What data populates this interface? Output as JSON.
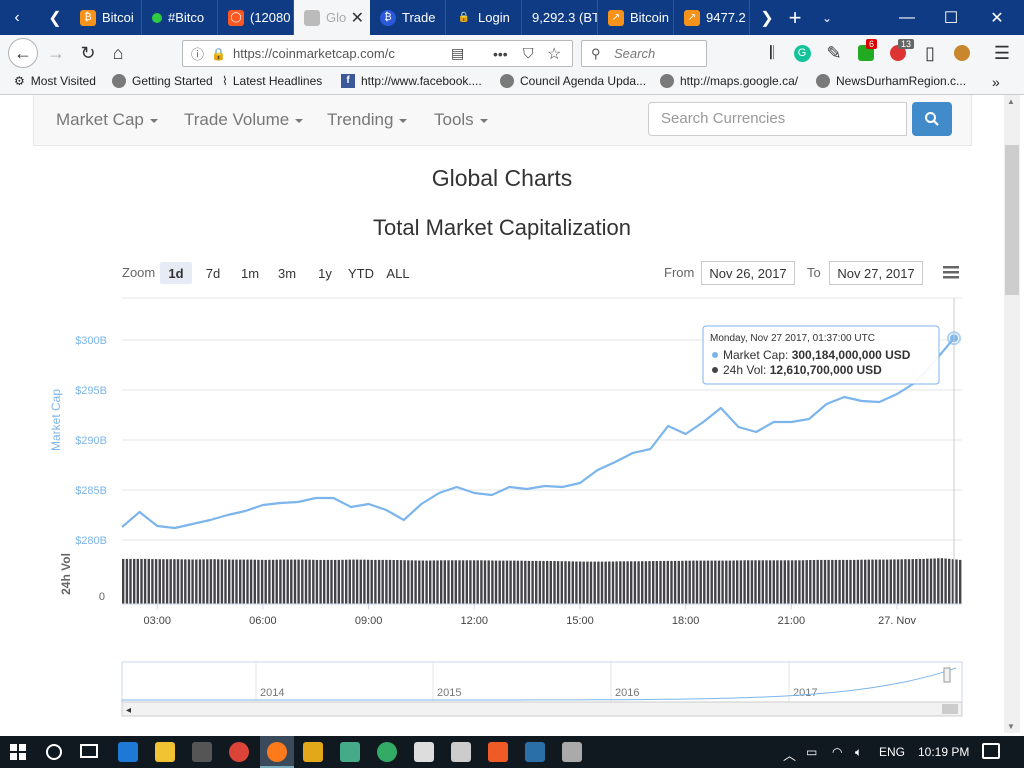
{
  "browser": {
    "tabs": [
      {
        "label": "Bitcoi",
        "color": "#f7931a"
      },
      {
        "label": "#Bitco",
        "color": "#2ecc40"
      },
      {
        "label": "(12080",
        "color": "#ff5722"
      },
      {
        "label": "Glo",
        "color": "#cccccc"
      },
      {
        "label": "Trade",
        "color": "#2a5ada"
      },
      {
        "label": "Login",
        "color": "#ffffff"
      },
      {
        "label": "9,292.3 (BT",
        "color": "#0f3b85"
      },
      {
        "label": "Bitcoin",
        "color": "#f7931a"
      },
      {
        "label": "9477.2",
        "color": "#f7931a"
      }
    ],
    "url": "https://coinmarketcap.com/c",
    "search_placeholder": "Search",
    "badges": {
      "ext1": "6",
      "ext2": "13"
    },
    "bookmarks": [
      "Most Visited",
      "Getting Started",
      "Latest Headlines",
      "http://www.facebook....",
      "Council Agenda Upda...",
      "http://maps.google.ca/",
      "NewsDurhamRegion.c..."
    ]
  },
  "site_nav": {
    "items": [
      "Market Cap",
      "Trade Volume",
      "Trending",
      "Tools"
    ],
    "search_placeholder": "Search Currencies"
  },
  "page": {
    "title": "Global Charts",
    "chart_title": "Total Market Capitalization",
    "zoom_label": "Zoom",
    "zoom_options": [
      "1d",
      "7d",
      "1m",
      "3m",
      "1y",
      "YTD",
      "ALL"
    ],
    "zoom_selected": "1d",
    "from_label": "From",
    "from_date": "Nov 26, 2017",
    "to_label": "To",
    "to_date": "Nov 27, 2017"
  },
  "tooltip": {
    "date": "Monday, Nov 27 2017, 01:37:00 UTC",
    "market_cap_label": "Market Cap:",
    "market_cap_value": "300,184,000,000 USD",
    "vol_label": "24h Vol:",
    "vol_value": "12,610,700,000 USD"
  },
  "chart_data": {
    "type": "line",
    "ylabel": "Market Cap",
    "ylabel2": "24h Vol",
    "y_ticks": [
      "$280B",
      "$285B",
      "$290B",
      "$295B",
      "$300B"
    ],
    "y_range": [
      280,
      300
    ],
    "vol_ticks": [
      "0"
    ],
    "x_ticks": [
      "03:00",
      "06:00",
      "09:00",
      "12:00",
      "15:00",
      "18:00",
      "21:00",
      "27. Nov"
    ],
    "x": [
      "02:00",
      "02:30",
      "03:00",
      "03:30",
      "04:00",
      "04:30",
      "05:00",
      "05:30",
      "06:00",
      "06:30",
      "07:00",
      "07:30",
      "08:00",
      "08:30",
      "09:00",
      "09:30",
      "10:00",
      "10:30",
      "11:00",
      "11:30",
      "12:00",
      "12:30",
      "13:00",
      "13:30",
      "14:00",
      "14:30",
      "15:00",
      "15:30",
      "16:00",
      "16:30",
      "17:00",
      "17:30",
      "18:00",
      "18:30",
      "19:00",
      "19:30",
      "20:00",
      "20:30",
      "21:00",
      "21:30",
      "22:00",
      "22:30",
      "23:00",
      "23:30",
      "00:00",
      "00:30",
      "01:00",
      "01:37"
    ],
    "series": [
      {
        "name": "Market Cap",
        "unit": "B USD",
        "values": [
          281.3,
          282.8,
          281.4,
          281.2,
          281.6,
          282.0,
          282.5,
          282.9,
          283.5,
          283.7,
          283.8,
          284.2,
          284.2,
          283.3,
          283.6,
          283.0,
          282.0,
          283.6,
          284.7,
          285.3,
          284.7,
          284.5,
          285.3,
          285.1,
          285.4,
          285.3,
          285.7,
          287.0,
          287.8,
          288.7,
          289.1,
          291.4,
          290.6,
          291.8,
          293.2,
          291.3,
          290.8,
          291.8,
          291.8,
          292.1,
          293.6,
          294.3,
          293.9,
          293.8,
          294.6,
          295.7,
          297.6,
          300.18
        ]
      },
      {
        "name": "24h Vol",
        "unit": "B USD",
        "values": [
          12.9,
          12.9,
          12.8,
          12.8,
          12.7,
          12.8,
          12.7,
          12.7,
          12.6,
          12.7,
          12.7,
          12.6,
          12.6,
          12.7,
          12.6,
          12.6,
          12.5,
          12.4,
          12.5,
          12.5,
          12.5,
          12.4,
          12.4,
          12.3,
          12.3,
          12.2,
          12.1,
          12.1,
          12.2,
          12.2,
          12.3,
          12.3,
          12.4,
          12.4,
          12.4,
          12.5,
          12.5,
          12.5,
          12.5,
          12.6,
          12.6,
          12.6,
          12.7,
          12.7,
          12.8,
          12.9,
          13.1,
          12.61
        ]
      }
    ],
    "navigator_ticks": [
      "2014",
      "2015",
      "2016",
      "2017"
    ],
    "legend_placement": "none",
    "grid": true,
    "colors": {
      "line": "#7cb5ec",
      "volume": "#434348"
    }
  },
  "taskbar": {
    "lang": "ENG",
    "time": "10:19 PM"
  }
}
